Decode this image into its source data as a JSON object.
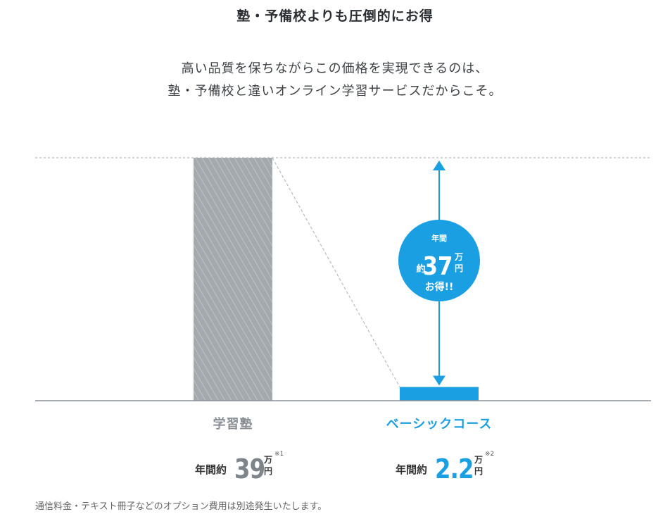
{
  "title": "塾・予備校よりも圧倒的にお得",
  "subtitle_lines": [
    "高い品質を保ちながらこの価格を実現できるのは、",
    "塾・予備校と違いオンライン学習サービスだからこそ。"
  ],
  "badge": {
    "line1": "年間",
    "prefix": "約",
    "amount": "37",
    "unit_man": "万",
    "unit_en": "円",
    "suffix": "お得!!"
  },
  "labels": [
    {
      "name": "学習塾",
      "prefix": "年間約",
      "amount": "39",
      "unit_man": "万",
      "unit_en": "円",
      "note": "※1"
    },
    {
      "name": "ベーシックコース",
      "prefix": "年間約",
      "amount": "2.2",
      "unit_man": "万",
      "unit_en": "円",
      "note": "※2"
    }
  ],
  "footnote": "通信料金・テキスト冊子などのオプション費用は別途発生いたします。",
  "colors": {
    "gray": "#a4a9ae",
    "blue": "#1a9fe3",
    "axis": "#8c9197"
  },
  "chart_data": {
    "type": "bar",
    "categories": [
      "学習塾",
      "ベーシックコース"
    ],
    "values": [
      39,
      2.2
    ],
    "ylim": [
      0,
      39
    ],
    "grid": false
  }
}
